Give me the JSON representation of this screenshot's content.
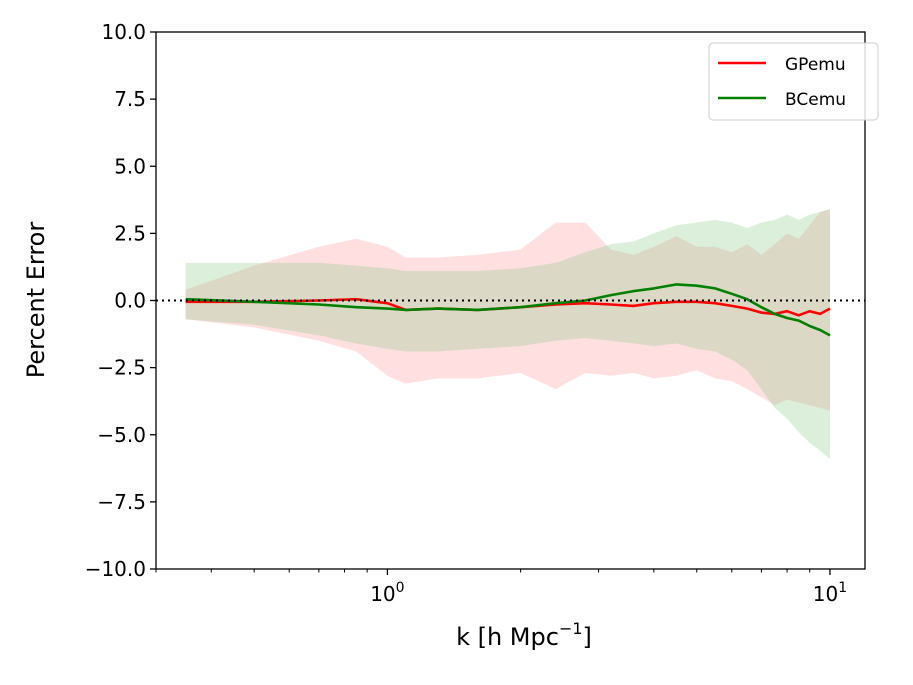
{
  "chart_data": {
    "type": "line",
    "title": "",
    "xlabel": "k [h Mpc",
    "xlabel_sup": "−1",
    "xlabel_close": "]",
    "ylabel": "Percent Error",
    "xscale": "log",
    "xlim": [
      0.3,
      12
    ],
    "ylim": [
      -10,
      10
    ],
    "yticks": [
      10,
      7.5,
      5,
      2.5,
      0,
      -2.5,
      -5,
      -7.5,
      -10
    ],
    "ytick_labels": [
      "10.0",
      "7.5",
      "5.0",
      "2.5",
      "0.0",
      "−2.5",
      "−5.0",
      "−7.5",
      "−10.0"
    ],
    "xticks": [
      {
        "value": 1,
        "base": "10",
        "exp": "0"
      },
      {
        "value": 10,
        "base": "10",
        "exp": "1"
      }
    ],
    "reference_line": {
      "y": 0,
      "style": "dotted",
      "color": "#000000"
    },
    "legend": {
      "position": "top-right",
      "entries": [
        "GPemu",
        "BCemu"
      ]
    },
    "series": [
      {
        "name": "GPemu",
        "color": "#ff0000",
        "band_color": "#ff9a9a",
        "x": [
          0.35,
          0.5,
          0.7,
          0.85,
          1.0,
          1.1,
          1.3,
          1.6,
          2.0,
          2.4,
          2.8,
          3.2,
          3.6,
          4.0,
          4.5,
          5.0,
          5.5,
          6.0,
          6.5,
          7.0,
          7.5,
          8.0,
          8.5,
          9.0,
          9.5,
          10.0
        ],
        "y": [
          -0.05,
          -0.05,
          0.0,
          0.05,
          -0.1,
          -0.35,
          -0.3,
          -0.35,
          -0.25,
          -0.15,
          -0.1,
          -0.15,
          -0.2,
          -0.1,
          -0.05,
          -0.05,
          -0.1,
          -0.2,
          -0.3,
          -0.45,
          -0.5,
          -0.4,
          -0.55,
          -0.4,
          -0.5,
          -0.3
        ],
        "upper": [
          0.4,
          1.3,
          2.0,
          2.3,
          2.0,
          1.6,
          1.6,
          1.7,
          1.9,
          2.9,
          2.9,
          1.9,
          1.7,
          2.0,
          2.4,
          2.0,
          2.0,
          1.8,
          2.1,
          1.7,
          2.1,
          2.5,
          2.3,
          2.8,
          3.3,
          3.4
        ],
        "lower": [
          -0.7,
          -1.0,
          -1.5,
          -1.9,
          -2.8,
          -3.1,
          -2.9,
          -2.9,
          -2.7,
          -3.3,
          -2.7,
          -2.8,
          -2.7,
          -2.9,
          -2.8,
          -2.6,
          -2.9,
          -3.0,
          -3.3,
          -3.6,
          -3.9,
          -3.7,
          -3.8,
          -3.9,
          -4.0,
          -4.1
        ]
      },
      {
        "name": "BCemu",
        "color": "#008000",
        "band_color": "#8fce8f",
        "x": [
          0.35,
          0.5,
          0.7,
          0.85,
          1.0,
          1.1,
          1.3,
          1.6,
          2.0,
          2.4,
          2.8,
          3.2,
          3.6,
          4.0,
          4.5,
          5.0,
          5.5,
          6.0,
          6.5,
          7.0,
          7.5,
          8.0,
          8.5,
          9.0,
          9.5,
          10.0
        ],
        "y": [
          0.05,
          -0.05,
          -0.15,
          -0.25,
          -0.3,
          -0.35,
          -0.3,
          -0.35,
          -0.25,
          -0.1,
          0.0,
          0.2,
          0.35,
          0.45,
          0.6,
          0.55,
          0.45,
          0.25,
          0.05,
          -0.25,
          -0.5,
          -0.65,
          -0.75,
          -0.95,
          -1.1,
          -1.3
        ],
        "upper": [
          1.4,
          1.4,
          1.4,
          1.3,
          1.2,
          1.1,
          1.1,
          1.1,
          1.2,
          1.4,
          1.8,
          2.1,
          2.2,
          2.5,
          2.8,
          2.9,
          3.0,
          2.9,
          2.7,
          2.9,
          3.0,
          3.2,
          3.0,
          3.2,
          3.3,
          3.4
        ],
        "lower": [
          -0.7,
          -0.9,
          -1.3,
          -1.6,
          -1.8,
          -1.9,
          -1.9,
          -1.8,
          -1.7,
          -1.5,
          -1.4,
          -1.5,
          -1.6,
          -1.7,
          -1.6,
          -1.8,
          -1.9,
          -2.2,
          -2.6,
          -3.3,
          -4.0,
          -4.4,
          -4.9,
          -5.3,
          -5.6,
          -5.9
        ]
      }
    ]
  }
}
